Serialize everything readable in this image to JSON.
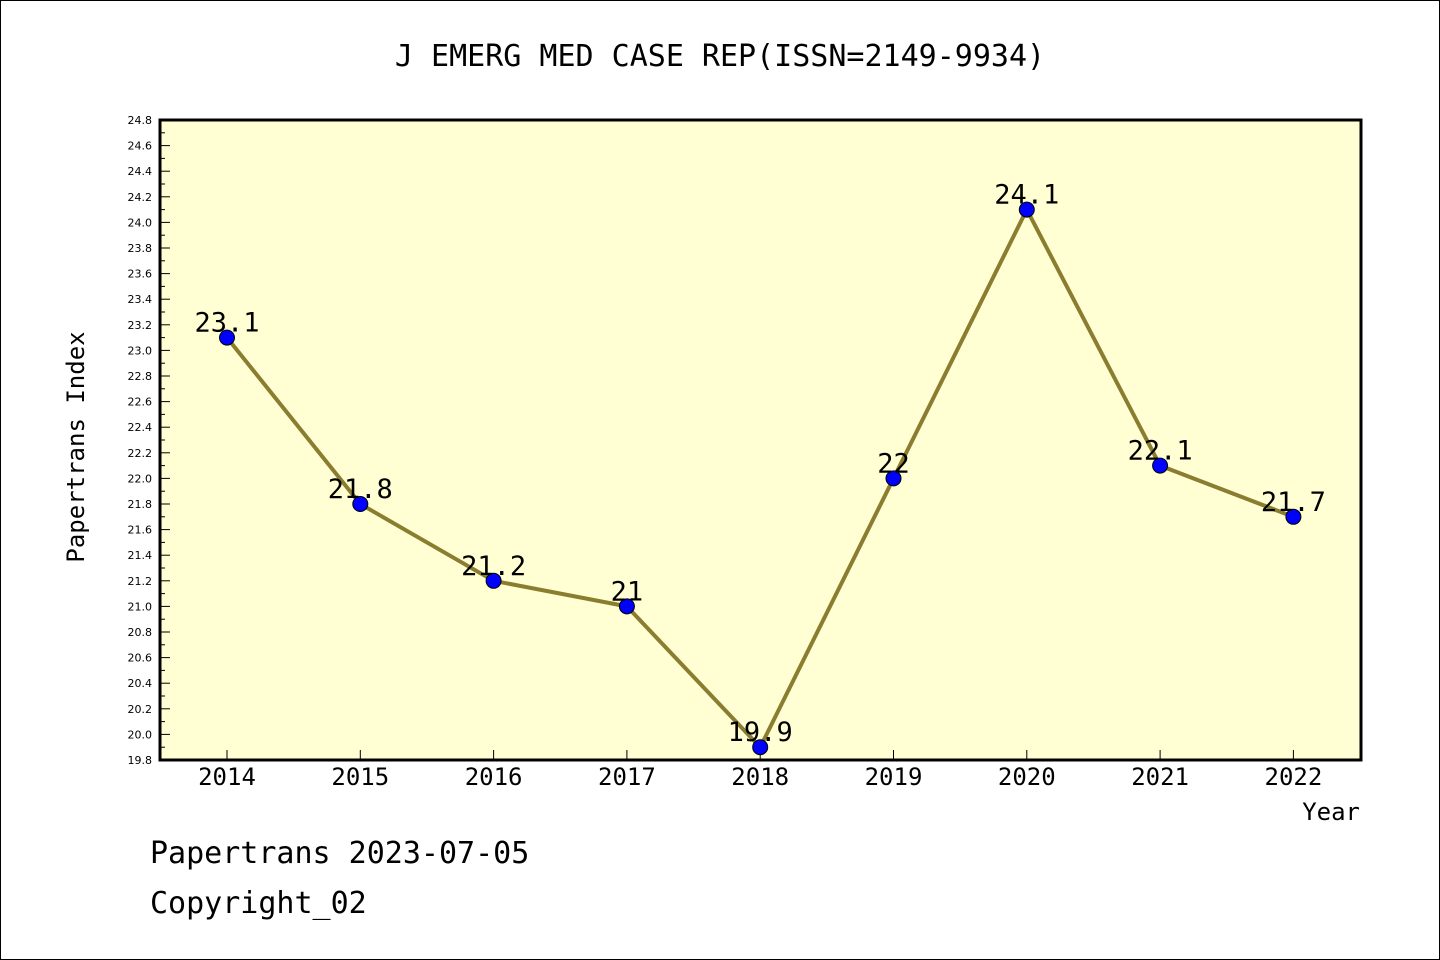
{
  "chart_data": {
    "type": "line",
    "title": "J EMERG MED CASE REP(ISSN=2149-9934)",
    "xlabel": "Year",
    "ylabel": "Papertrans Index",
    "categories": [
      "2014",
      "2015",
      "2016",
      "2017",
      "2018",
      "2019",
      "2020",
      "2021",
      "2022"
    ],
    "series": [
      {
        "values": [
          23.1,
          21.8,
          21.2,
          21.0,
          19.9,
          22.0,
          24.1,
          22.1,
          21.7
        ]
      }
    ],
    "data_labels": [
      "23.1",
      "21.8",
      "21.2",
      "21",
      "19.9",
      "22",
      "24.1",
      "22.1",
      "21.7"
    ],
    "ylim": [
      19.8,
      24.8
    ],
    "y_ticks": [
      "19.8",
      "20.0",
      "20.2",
      "20.4",
      "20.6",
      "20.8",
      "21.0",
      "21.2",
      "21.4",
      "21.6",
      "21.8",
      "22.0",
      "22.2",
      "22.4",
      "22.6",
      "22.8",
      "23.0",
      "23.2",
      "23.4",
      "23.6",
      "23.8",
      "24.0",
      "24.2",
      "24.4",
      "24.6",
      "24.8"
    ],
    "grid": false,
    "colors": {
      "plot_background": "#FFFFD3",
      "line": "#8B7D30",
      "marker": "#0000FF"
    }
  },
  "footer": {
    "date_text": "Papertrans 2023-07-05",
    "copyright_text": "Copyright_02"
  }
}
